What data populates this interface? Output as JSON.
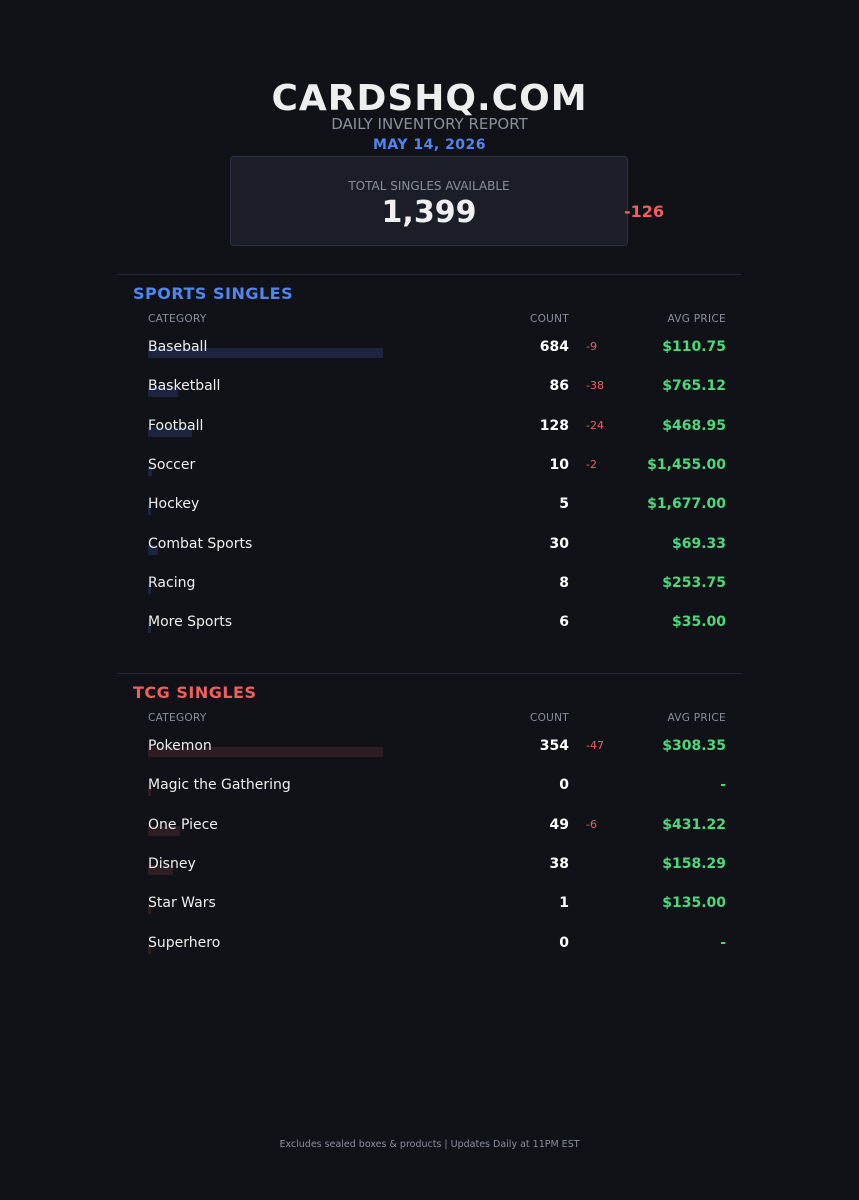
{
  "header": {
    "brand": "CARDSHQ.COM",
    "subtitle": "DAILY INVENTORY REPORT",
    "date": "MAY 14, 2026"
  },
  "summary": {
    "label": "TOTAL SINGLES AVAILABLE",
    "value": "1,399",
    "change": "-126"
  },
  "colors": {
    "sports_accent": "#4f86f0",
    "tcg_accent": "#f05f5f",
    "sports_bar": "#1c2540",
    "tcg_bar": "#2e1d22",
    "positive_price": "#4cd97b",
    "negative_delta": "#f05f5f"
  },
  "sections": [
    {
      "title": "SPORTS SINGLES",
      "accent": "#4f86f0",
      "bar_color": "#1c2540",
      "columns": {
        "category": "CATEGORY",
        "count": "COUNT",
        "price": "AVG PRICE"
      },
      "rows": [
        {
          "category": "Baseball",
          "count": "684",
          "delta": "-9",
          "price": "$110.75",
          "share": 1.0
        },
        {
          "category": "Basketball",
          "count": "86",
          "delta": "-38",
          "price": "$765.12",
          "share": 0.126
        },
        {
          "category": "Football",
          "count": "128",
          "delta": "-24",
          "price": "$468.95",
          "share": 0.187
        },
        {
          "category": "Soccer",
          "count": "10",
          "delta": "-2",
          "price": "$1,455.00",
          "share": 0.015
        },
        {
          "category": "Hockey",
          "count": "5",
          "delta": "",
          "price": "$1,677.00",
          "share": 0.007
        },
        {
          "category": "Combat Sports",
          "count": "30",
          "delta": "",
          "price": "$69.33",
          "share": 0.044
        },
        {
          "category": "Racing",
          "count": "8",
          "delta": "",
          "price": "$253.75",
          "share": 0.012
        },
        {
          "category": "More Sports",
          "count": "6",
          "delta": "",
          "price": "$35.00",
          "share": 0.009
        }
      ]
    },
    {
      "title": "TCG SINGLES",
      "accent": "#f05f5f",
      "bar_color": "#2e1d22",
      "columns": {
        "category": "CATEGORY",
        "count": "COUNT",
        "price": "AVG PRICE"
      },
      "rows": [
        {
          "category": "Pokemon",
          "count": "354",
          "delta": "-47",
          "price": "$308.35",
          "share": 1.0
        },
        {
          "category": "Magic the Gathering",
          "count": "0",
          "delta": "",
          "price": "-",
          "share": 0.0
        },
        {
          "category": "One Piece",
          "count": "49",
          "delta": "-6",
          "price": "$431.22",
          "share": 0.138
        },
        {
          "category": "Disney",
          "count": "38",
          "delta": "",
          "price": "$158.29",
          "share": 0.107
        },
        {
          "category": "Star Wars",
          "count": "1",
          "delta": "",
          "price": "$135.00",
          "share": 0.003
        },
        {
          "category": "Superhero",
          "count": "0",
          "delta": "",
          "price": "-",
          "share": 0.0
        }
      ]
    }
  ],
  "footer": "Excludes sealed boxes & products  |  Updates Daily at 11PM EST"
}
